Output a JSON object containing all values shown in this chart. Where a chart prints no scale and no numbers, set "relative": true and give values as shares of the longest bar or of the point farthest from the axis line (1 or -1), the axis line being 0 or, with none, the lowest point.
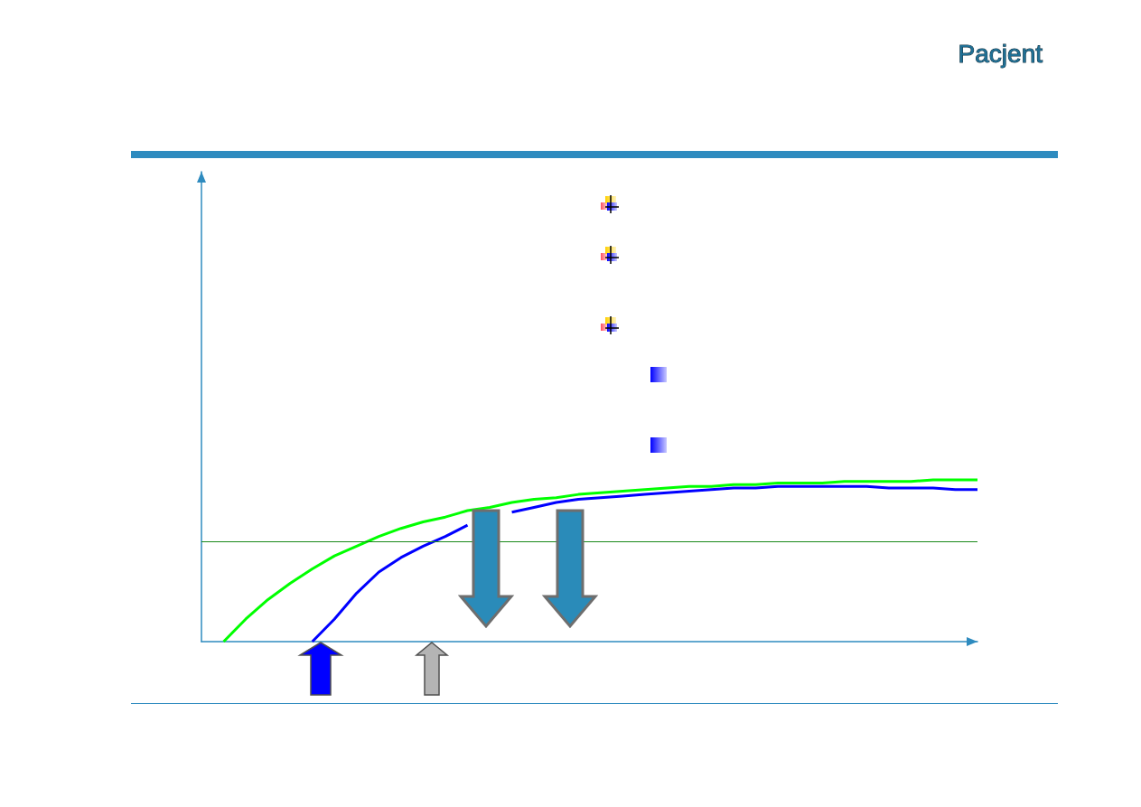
{
  "chart_data": {
    "type": "line",
    "title": "Pacjent",
    "relative": true,
    "marker": "none",
    "categories": [
      null,
      null,
      null,
      null,
      null,
      null,
      null,
      null,
      null,
      null,
      null,
      null,
      null,
      null,
      null,
      null,
      null,
      null,
      null,
      null,
      null,
      null,
      null,
      null,
      null,
      null,
      null,
      null,
      null,
      null,
      null,
      null,
      null,
      null,
      null,
      null
    ],
    "series": [
      {
        "color": "#00ff00",
        "values": [
          null,
          0,
          0.14,
          0.26,
          0.36,
          0.45,
          0.53,
          0.59,
          0.65,
          0.7,
          0.74,
          0.77,
          0.81,
          0.83,
          0.86,
          0.88,
          0.89,
          0.91,
          0.92,
          0.93,
          0.94,
          0.95,
          0.96,
          0.96,
          0.97,
          0.97,
          0.98,
          0.98,
          0.98,
          0.99,
          0.99,
          0.99,
          0.99,
          1,
          1,
          1
        ]
      },
      {
        "color": "#0000ff",
        "values": [
          null,
          null,
          null,
          null,
          null,
          0,
          0.14,
          0.3,
          0.43,
          0.52,
          0.59,
          0.65,
          0.72,
          null,
          0.8,
          0.83,
          0.86,
          0.88,
          0.89,
          0.9,
          0.91,
          0.92,
          0.93,
          0.94,
          0.95,
          0.95,
          0.96,
          0.96,
          0.96,
          0.96,
          0.96,
          0.95,
          0.95,
          0.95,
          0.94,
          0.94
        ]
      }
    ],
    "ref_lines": [
      {
        "axis": "y",
        "value": 0.62,
        "color": "#1a8a1a"
      }
    ]
  }
}
